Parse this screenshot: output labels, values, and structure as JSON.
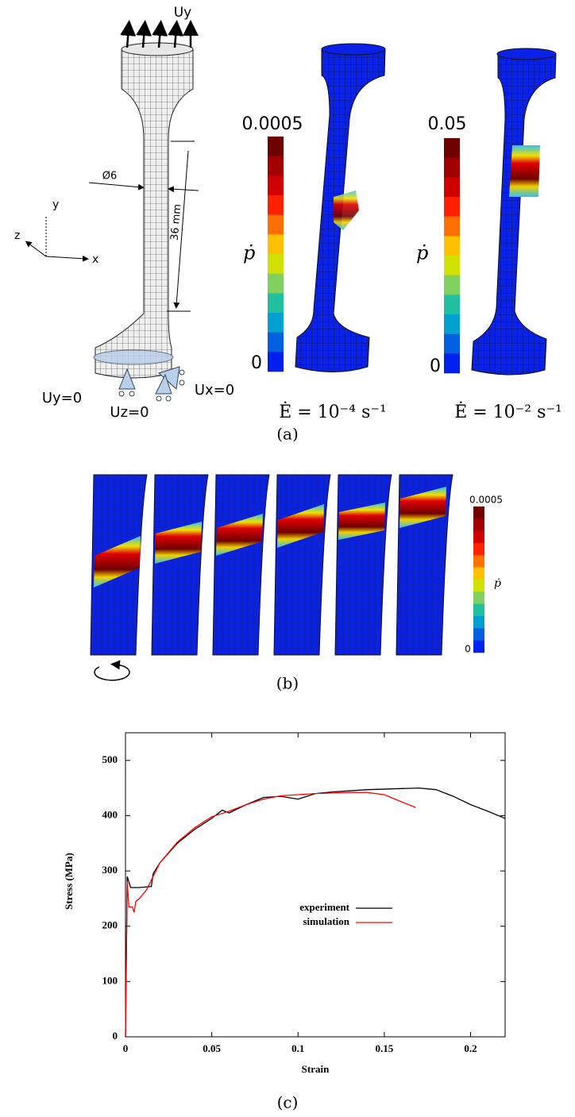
{
  "panel_a": {
    "load_label": "Uy",
    "diameter_label": "Ø6",
    "length_label": "36 mm",
    "axis_y": "y",
    "axis_z": "z",
    "axis_x": "x",
    "bc_uy": "Uy=0",
    "bc_ux": "Ux=0",
    "bc_uz": "Uz=0",
    "colorbars": [
      {
        "max": "0.0005",
        "min": "0",
        "symbol": "ṗ",
        "rate": "Ė = 10⁻⁴ s⁻¹"
      },
      {
        "max": "0.05",
        "min": "0",
        "symbol": "ṗ",
        "rate": "Ė = 10⁻² s⁻¹"
      }
    ],
    "caption": "(a)"
  },
  "panel_b": {
    "max": "0.0005",
    "min": "0",
    "symbol": "ṗ",
    "caption": "(b)"
  },
  "chart_data": {
    "type": "line",
    "x_label": "Strain",
    "y_label": "Stress (MPa)",
    "xlim": [
      0,
      0.22
    ],
    "ylim": [
      0,
      550
    ],
    "xticks": [
      0,
      0.05,
      0.1,
      0.15,
      0.2
    ],
    "yticks": [
      0,
      100,
      200,
      300,
      400,
      500
    ],
    "grid": false,
    "legend": "center",
    "series": [
      {
        "name": "experiment",
        "color": "#000000",
        "x": [
          0,
          0.001,
          0.003,
          0.008,
          0.015,
          0.016,
          0.02,
          0.03,
          0.04,
          0.05,
          0.056,
          0.06,
          0.07,
          0.08,
          0.09,
          0.1,
          0.11,
          0.12,
          0.14,
          0.16,
          0.17,
          0.18,
          0.19,
          0.2,
          0.21,
          0.22
        ],
        "values": [
          0,
          290,
          270,
          270,
          272,
          295,
          315,
          350,
          375,
          395,
          410,
          405,
          420,
          433,
          435,
          430,
          440,
          443,
          447,
          449,
          450,
          447,
          435,
          420,
          408,
          395
        ]
      },
      {
        "name": "simulation",
        "color": "#ff0000",
        "x": [
          0,
          0.001,
          0.002,
          0.004,
          0.005,
          0.006,
          0.008,
          0.012,
          0.016,
          0.02,
          0.03,
          0.04,
          0.05,
          0.06,
          0.07,
          0.08,
          0.09,
          0.1,
          0.11,
          0.12,
          0.13,
          0.14,
          0.15,
          0.16,
          0.168
        ],
        "values": [
          0,
          280,
          235,
          235,
          225,
          245,
          250,
          265,
          290,
          315,
          352,
          378,
          398,
          408,
          420,
          430,
          436,
          438,
          440,
          441,
          442,
          442,
          438,
          425,
          415
        ]
      }
    ],
    "caption": "(c)"
  }
}
